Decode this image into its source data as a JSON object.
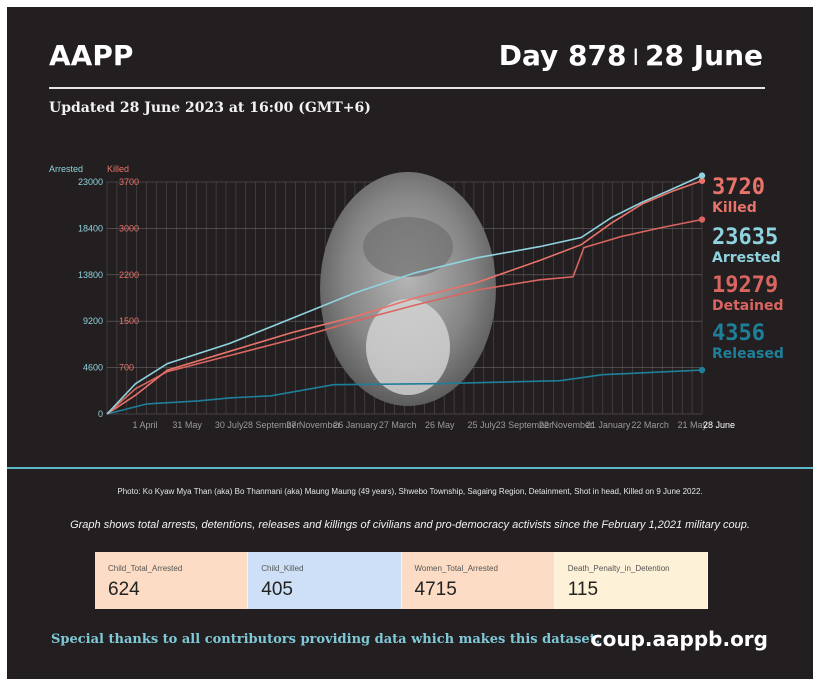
{
  "header": {
    "org": "AAPP",
    "day_label": "Day 878",
    "separator": "I",
    "date_label": "28 June"
  },
  "updated": "Updated 28 June 2023 at 16:00 (GMT+6)",
  "colors": {
    "arrested": "#8fd3df",
    "killed": "#e8736a",
    "detained": "#d96560",
    "released": "#1f7f9a",
    "background": "#231f20"
  },
  "chart_data": {
    "type": "line",
    "left_axis": {
      "label": "Arrested",
      "ticks": [
        "0",
        "4600",
        "9200",
        "13800",
        "18400",
        "23000"
      ],
      "ylim": [
        0,
        23000
      ]
    },
    "right_axis": {
      "label": "Killed",
      "ticks": [
        "700",
        "1500",
        "2200",
        "3000",
        "3700"
      ],
      "ylim": [
        0,
        3700
      ]
    },
    "x_ticks": [
      "1 April",
      "31 May",
      "30 July",
      "28 September",
      "27 November",
      "26 January",
      "27 March",
      "26 May",
      "25 July",
      "23 September",
      "22 November",
      "21 January",
      "22 March",
      "21 May",
      "28 June"
    ],
    "x_range": [
      "2021-02-01",
      "2023-06-28"
    ],
    "series": [
      {
        "name": "Arrested",
        "axis": "left",
        "final": "23635",
        "x": [
          "2021-02-01",
          "2021-03-15",
          "2021-05-01",
          "2021-08-01",
          "2021-11-01",
          "2022-02-01",
          "2022-05-01",
          "2022-08-01",
          "2022-11-01",
          "2023-01-01",
          "2023-02-15",
          "2023-04-01",
          "2023-05-15",
          "2023-06-28"
        ],
        "values": [
          0,
          3000,
          5000,
          7000,
          9500,
          12000,
          14000,
          15500,
          16600,
          17500,
          19500,
          21000,
          22300,
          23635
        ]
      },
      {
        "name": "Killed",
        "axis": "right",
        "final": "3720",
        "x": [
          "2021-02-01",
          "2021-03-15",
          "2021-05-01",
          "2021-08-01",
          "2021-11-01",
          "2022-02-01",
          "2022-05-01",
          "2022-08-01",
          "2022-11-01",
          "2023-01-01",
          "2023-02-15",
          "2023-04-01",
          "2023-05-15",
          "2023-06-28"
        ],
        "values": [
          0,
          300,
          700,
          1000,
          1300,
          1550,
          1850,
          2100,
          2450,
          2700,
          3050,
          3350,
          3550,
          3720
        ]
      },
      {
        "name": "Detained",
        "axis": "left",
        "final": "19279",
        "x": [
          "2021-02-01",
          "2021-03-15",
          "2021-05-01",
          "2021-08-01",
          "2021-11-01",
          "2022-02-01",
          "2022-05-01",
          "2022-08-01",
          "2022-11-01",
          "2022-12-20",
          "2023-01-05",
          "2023-03-01",
          "2023-05-01",
          "2023-06-28"
        ],
        "values": [
          0,
          2500,
          4200,
          5800,
          7400,
          9200,
          10800,
          12300,
          13300,
          13600,
          16500,
          17600,
          18500,
          19279
        ]
      },
      {
        "name": "Released",
        "axis": "left",
        "final": "4356",
        "x": [
          "2021-02-01",
          "2021-04-01",
          "2021-06-15",
          "2021-08-01",
          "2021-10-01",
          "2022-01-01",
          "2022-06-01",
          "2022-12-01",
          "2023-02-01",
          "2023-06-28"
        ],
        "values": [
          0,
          1000,
          1300,
          1600,
          1800,
          2900,
          3000,
          3300,
          3900,
          4356
        ]
      }
    ]
  },
  "photo_caption": "Photo: Ko Kyaw Mya Than (aka) Bo Thanmani (aka) Maung Maung (49 years), Shwebo Township, Sagaing Region, Detainment, Shot in head, Killed on 9 June 2022.",
  "description": "Graph shows total arrests, detentions, releases and killings of civilians and pro-democracy activists since the February 1,2021 military coup.",
  "cards": [
    {
      "label": "Child_Total_Arrested",
      "value": "624",
      "color": "#fcdcc4"
    },
    {
      "label": "Child_Killed",
      "value": "405",
      "color": "#cde0f8"
    },
    {
      "label": "Women_Total_Arrested",
      "value": "4715",
      "color": "#fcdcc4"
    },
    {
      "label": "Death_Penalty_in_Detention",
      "value": "115",
      "color": "#fdf1d8"
    }
  ],
  "footer": {
    "thanks": "Special thanks to all contributors providing data which makes this dataset.",
    "site": "coup.aappb.org"
  }
}
